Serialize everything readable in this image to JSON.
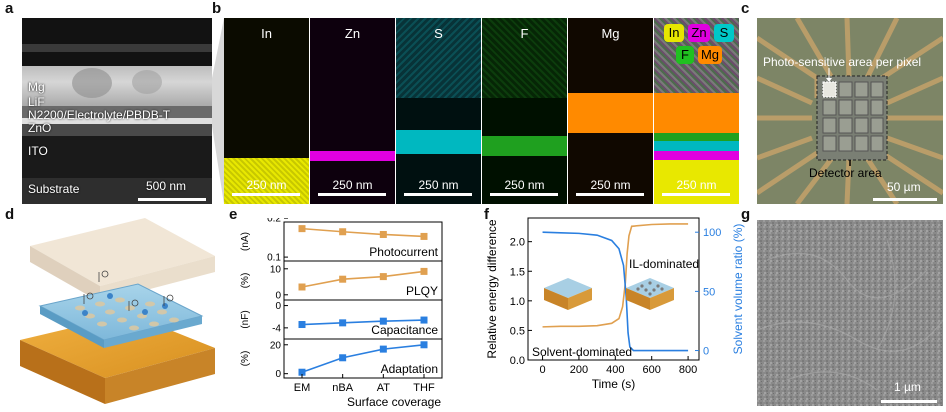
{
  "panels": {
    "a": "a",
    "b": "b",
    "c": "c",
    "d": "d",
    "e": "e",
    "f": "f",
    "g": "g"
  },
  "panel_a": {
    "layers": [
      "Mg",
      "LiF",
      "N2200/Electrolyte/PBDB-T",
      "ZnO",
      "ITO",
      "Substrate"
    ],
    "scale": "500 nm"
  },
  "panel_b": {
    "maps": [
      {
        "element": "In",
        "color": "#e6e600",
        "scale": "250 nm"
      },
      {
        "element": "Zn",
        "color": "#e000e0",
        "scale": "250 nm"
      },
      {
        "element": "S",
        "color": "#00d0d0",
        "scale": "250 nm"
      },
      {
        "element": "F",
        "color": "#20c020",
        "scale": "250 nm"
      },
      {
        "element": "Mg",
        "color": "#ff8a00",
        "scale": "250 nm"
      }
    ],
    "overlay": {
      "badges": [
        "In",
        "Zn",
        "S",
        "F",
        "Mg"
      ],
      "scale": "250 nm"
    }
  },
  "panel_c": {
    "label_top": "Photo-sensitive area per pixel",
    "label_bottom": "Detector area",
    "scale": "50 µm"
  },
  "panel_e": {
    "xlabel": "Surface coverage",
    "categories": [
      "EM",
      "nBA",
      "AT",
      "THF"
    ],
    "subplots": [
      {
        "name": "Photocurrent",
        "unit": "(nA)",
        "ticks": [
          "0.2",
          "0.1"
        ],
        "values": [
          0.173,
          0.165,
          0.158,
          0.153
        ],
        "ylim": [
          0.09,
          0.19
        ],
        "color": "#e0a050"
      },
      {
        "name": "PLQY",
        "unit": "(%)",
        "ticks": [
          "10",
          "0"
        ],
        "values": [
          3,
          6,
          7,
          9
        ],
        "ylim": [
          -2,
          13
        ],
        "color": "#e0a050"
      },
      {
        "name": "Capacitance",
        "unit": "(nF)",
        "ticks": [
          "0",
          "-4"
        ],
        "values": [
          -3.4,
          -3.1,
          -2.8,
          -2.6
        ],
        "ylim": [
          -6,
          1
        ],
        "color": "#2a7fe0"
      },
      {
        "name": "Adaptation",
        "unit": "(%)",
        "ticks": [
          "20",
          "0"
        ],
        "values": [
          1,
          11,
          17,
          20
        ],
        "ylim": [
          -3,
          24
        ],
        "color": "#2a7fe0"
      }
    ]
  },
  "chart_data": [
    {
      "type": "line",
      "title": "",
      "xlabel": "Time (s)",
      "ylabel": "Relative energy difference",
      "y2label": "Solvent volume ratio (%)",
      "xlim": [
        -80,
        860
      ],
      "ylim": [
        0,
        2.4
      ],
      "y2lim": [
        -8,
        112
      ],
      "xticks": [
        "0",
        "200",
        "400",
        "600",
        "800"
      ],
      "yticks": [
        "0.0",
        "0.5",
        "1.0",
        "1.5",
        "2.0"
      ],
      "y2ticks": [
        "0",
        "50",
        "100"
      ],
      "series": [
        {
          "name": "Relative energy difference",
          "axis": "left",
          "color": "#e0a050",
          "x": [
            0,
            100,
            200,
            300,
            380,
            420,
            440,
            455,
            465,
            475,
            490,
            600,
            700,
            800
          ],
          "values": [
            0.56,
            0.57,
            0.57,
            0.58,
            0.62,
            0.7,
            0.9,
            1.3,
            1.8,
            2.1,
            2.26,
            2.29,
            2.3,
            2.3
          ]
        },
        {
          "name": "Solvent volume ratio",
          "axis": "right",
          "color": "#2a7fe0",
          "x": [
            0,
            100,
            200,
            300,
            380,
            420,
            445,
            460,
            470,
            480,
            500,
            600,
            700,
            800
          ],
          "values": [
            100,
            99.5,
            99,
            97.5,
            93,
            86,
            72,
            45,
            15,
            3,
            0,
            0,
            0,
            0
          ]
        }
      ],
      "annotations": [
        "IL-dominated",
        "Solvent-dominated"
      ]
    }
  ],
  "panel_g": {
    "scale": "1 µm"
  }
}
